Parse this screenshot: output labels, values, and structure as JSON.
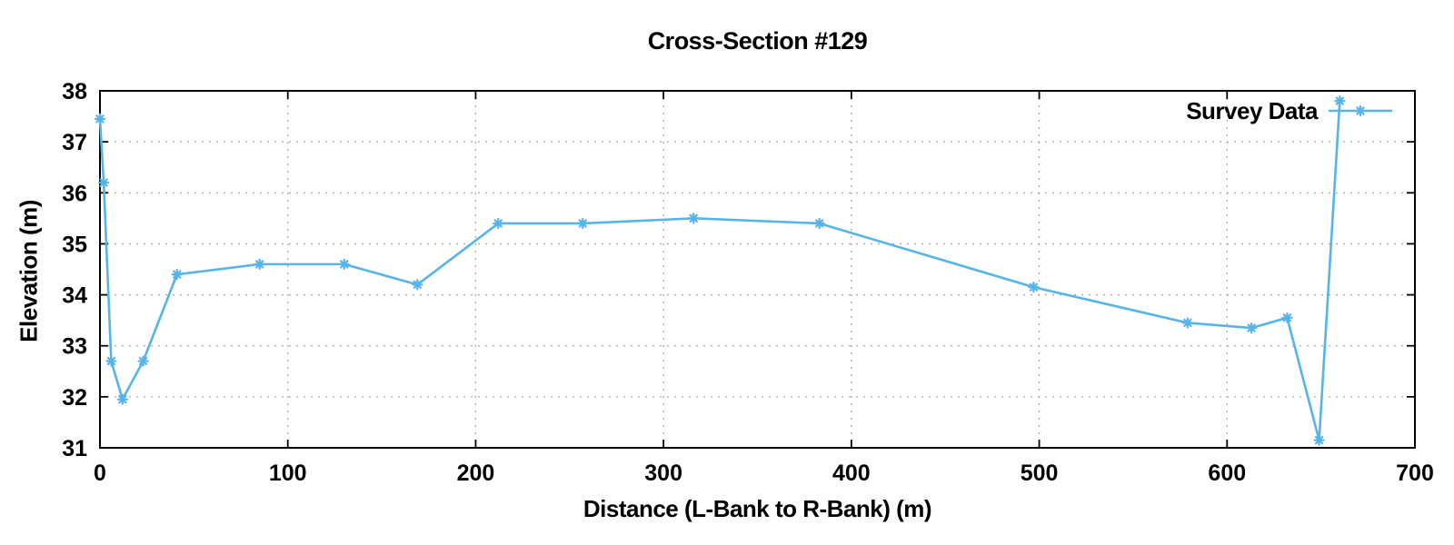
{
  "chart_data": {
    "type": "line",
    "title": "Cross-Section #129",
    "xlabel": "Distance (L-Bank to R-Bank) (m)",
    "ylabel": "Elevation (m)",
    "legend": [
      "Survey Data"
    ],
    "legend_position": "top-right-inside",
    "grid": true,
    "xlim": [
      0,
      700
    ],
    "ylim": [
      31,
      38
    ],
    "x_ticks": [
      0,
      100,
      200,
      300,
      400,
      500,
      600,
      700
    ],
    "y_ticks": [
      31,
      32,
      33,
      34,
      35,
      36,
      37,
      38
    ],
    "series": [
      {
        "name": "Survey Data",
        "marker": "asterisk",
        "points": [
          [
            0,
            37.45
          ],
          [
            2,
            36.2
          ],
          [
            6,
            32.7
          ],
          [
            12,
            31.95
          ],
          [
            23,
            32.7
          ],
          [
            41,
            34.4
          ],
          [
            85,
            34.6
          ],
          [
            130,
            34.6
          ],
          [
            169,
            34.2
          ],
          [
            212,
            35.4
          ],
          [
            257,
            35.4
          ],
          [
            316,
            35.5
          ],
          [
            383,
            35.4
          ],
          [
            497,
            34.15
          ],
          [
            579,
            33.45
          ],
          [
            613,
            33.35
          ],
          [
            632,
            33.55
          ],
          [
            649,
            31.15
          ],
          [
            660,
            37.8
          ]
        ]
      }
    ],
    "colors": {
      "series": "#56B4E9",
      "axis": "#000000",
      "grid": "#aaaaaa",
      "background": "#ffffff",
      "text": "#000000"
    }
  }
}
